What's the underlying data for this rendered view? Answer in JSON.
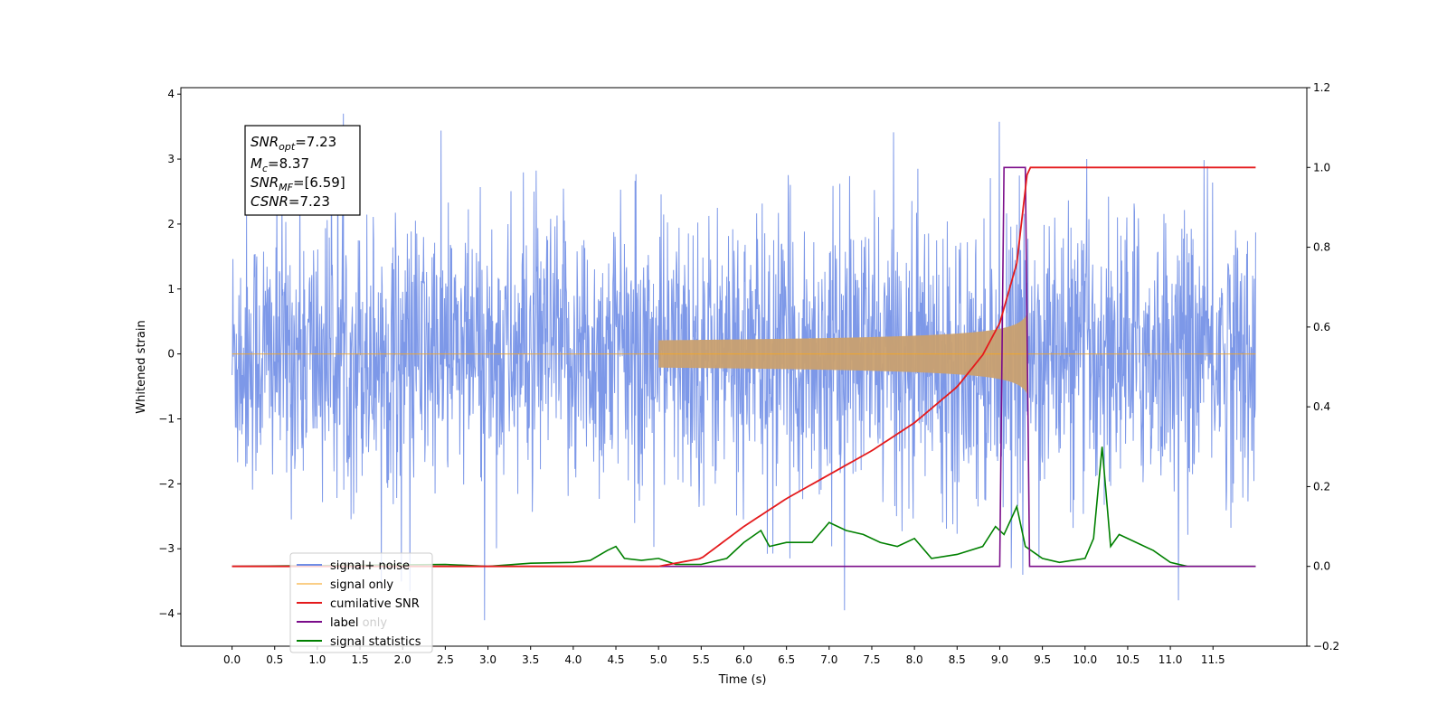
{
  "chart_data": {
    "type": "line",
    "title": "",
    "xlabel": "Time (s)",
    "ylabel": "Whitened strain",
    "y2label": "",
    "xlim": [
      -0.6,
      12.6
    ],
    "ylim": [
      -4.5,
      4.1
    ],
    "y2lim": [
      -0.2,
      1.2
    ],
    "grid": false,
    "legend_position": "lower-left",
    "x_ticks": [
      "0.0",
      "0.5",
      "1.0",
      "1.5",
      "2.0",
      "2.5",
      "3.0",
      "3.5",
      "4.0",
      "4.5",
      "5.0",
      "5.5",
      "6.0",
      "6.5",
      "7.0",
      "7.5",
      "8.0",
      "8.5",
      "9.0",
      "9.5",
      "10.0",
      "10.5",
      "11.0",
      "11.5"
    ],
    "y_ticks": [
      "4",
      "3",
      "2",
      "1",
      "0",
      "−1",
      "−2",
      "−3",
      "−4"
    ],
    "y2_ticks": [
      "1.2",
      "1.0",
      "0.8",
      "0.6",
      "0.4",
      "0.2",
      "0.0",
      "−0.2"
    ],
    "annotation": {
      "snr_opt": {
        "label": "SNR",
        "sub": "opt",
        "value": "=7.23"
      },
      "mc": {
        "label": "M",
        "sub": "c",
        "value": "=8.37"
      },
      "snr_mf": {
        "label": "SNR",
        "sub": "MF",
        "value": "=[6.59]"
      },
      "csnr": {
        "label": "CSNR",
        "value": "=7.23"
      }
    },
    "series": [
      {
        "name": "signal+ noise",
        "color": "#6f8de6",
        "axis": "left",
        "x_range": [
          0.0,
          12.0
        ],
        "amplitude_typical": 1.7,
        "peak": 3.7,
        "trough": -4.1
      },
      {
        "name": "signal only",
        "color": "#f5a623",
        "axis": "left",
        "chirp_start": 5.0,
        "merger": 9.33,
        "peak_amplitude": 0.65
      },
      {
        "name": "cumilative SNR",
        "color": "#e41a1c",
        "axis": "right",
        "x": [
          0.0,
          5.0,
          5.5,
          6.0,
          6.5,
          7.0,
          7.5,
          8.0,
          8.5,
          8.8,
          9.0,
          9.2,
          9.33,
          12.0
        ],
        "y": [
          0.0,
          0.0,
          0.02,
          0.1,
          0.17,
          0.23,
          0.29,
          0.36,
          0.45,
          0.53,
          0.61,
          0.76,
          1.0,
          1.0
        ]
      },
      {
        "name": "label",
        "color": "#7b0d8a",
        "axis": "right",
        "x": [
          0.0,
          9.0,
          9.05,
          9.3,
          9.35,
          12.0
        ],
        "y": [
          0.0,
          0.0,
          1.0,
          1.0,
          0.0,
          0.0
        ]
      },
      {
        "name": "label only",
        "color": "#7b0d8a",
        "axis": "right"
      },
      {
        "name": "signal statistics",
        "color": "#008000",
        "axis": "right",
        "x": [
          0.0,
          2.5,
          3.0,
          3.5,
          4.0,
          4.2,
          4.4,
          4.5,
          4.6,
          4.8,
          5.0,
          5.2,
          5.5,
          5.8,
          6.0,
          6.2,
          6.3,
          6.5,
          6.8,
          7.0,
          7.2,
          7.4,
          7.6,
          7.8,
          8.0,
          8.2,
          8.5,
          8.8,
          8.95,
          9.05,
          9.2,
          9.3,
          9.5,
          9.7,
          10.0,
          10.1,
          10.2,
          10.3,
          10.4,
          10.6,
          10.8,
          11.0,
          11.2,
          12.0
        ],
        "y": [
          0.0,
          0.005,
          0.0,
          0.008,
          0.01,
          0.015,
          0.04,
          0.05,
          0.02,
          0.015,
          0.02,
          0.005,
          0.005,
          0.02,
          0.06,
          0.09,
          0.05,
          0.06,
          0.06,
          0.11,
          0.09,
          0.08,
          0.06,
          0.05,
          0.07,
          0.02,
          0.03,
          0.05,
          0.1,
          0.08,
          0.15,
          0.05,
          0.02,
          0.01,
          0.02,
          0.07,
          0.3,
          0.05,
          0.08,
          0.06,
          0.04,
          0.01,
          0.0,
          0.0
        ]
      }
    ]
  }
}
